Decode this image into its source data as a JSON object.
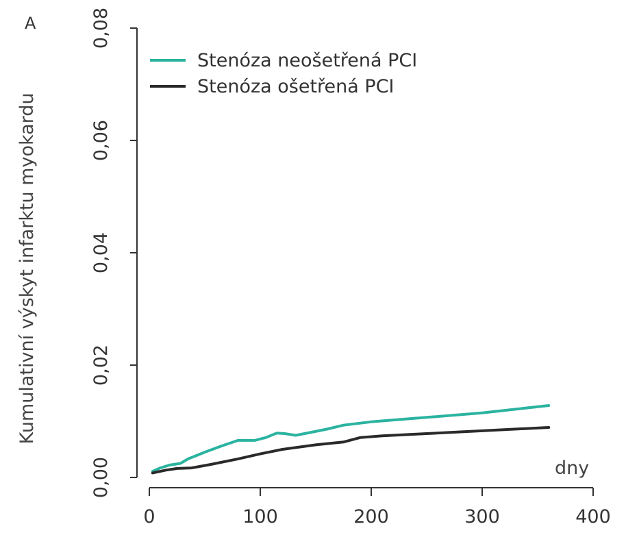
{
  "chart_data": {
    "type": "line",
    "panel_label": "A",
    "title": "",
    "xlabel": "dny",
    "ylabel": "Kumulativní výskyt infarktu myokardu",
    "xlim": [
      0,
      400
    ],
    "ylim": [
      0,
      0.08
    ],
    "x_ticks": [
      0,
      100,
      200,
      300,
      400
    ],
    "x_tick_labels": [
      "0",
      "100",
      "200",
      "300",
      "400"
    ],
    "y_ticks": [
      0,
      0.02,
      0.04,
      0.06,
      0.08
    ],
    "y_tick_labels": [
      "0,00",
      "0,02",
      "0,04",
      "0,06",
      "0,08"
    ],
    "grid": false,
    "legend_position": "top-left",
    "series": [
      {
        "name": "Stenóza neošetřená PCI",
        "color": "#2bb3a0",
        "points": [
          [
            3,
            0.0011
          ],
          [
            10,
            0.0017
          ],
          [
            18,
            0.0022
          ],
          [
            28,
            0.0025
          ],
          [
            35,
            0.0033
          ],
          [
            50,
            0.0045
          ],
          [
            65,
            0.0056
          ],
          [
            80,
            0.0066
          ],
          [
            95,
            0.0066
          ],
          [
            105,
            0.0071
          ],
          [
            115,
            0.0079
          ],
          [
            122,
            0.0078
          ],
          [
            132,
            0.0075
          ],
          [
            145,
            0.008
          ],
          [
            160,
            0.0086
          ],
          [
            175,
            0.0093
          ],
          [
            200,
            0.0099
          ],
          [
            250,
            0.0107
          ],
          [
            300,
            0.0115
          ],
          [
            360,
            0.0128
          ]
        ]
      },
      {
        "name": "Stenóza ošetřená PCI",
        "color": "#2a2a2a",
        "points": [
          [
            3,
            0.0008
          ],
          [
            15,
            0.0013
          ],
          [
            25,
            0.0016
          ],
          [
            38,
            0.0017
          ],
          [
            55,
            0.0023
          ],
          [
            80,
            0.0033
          ],
          [
            100,
            0.0042
          ],
          [
            120,
            0.005
          ],
          [
            150,
            0.0058
          ],
          [
            175,
            0.0063
          ],
          [
            190,
            0.0071
          ],
          [
            210,
            0.0074
          ],
          [
            250,
            0.0078
          ],
          [
            300,
            0.0083
          ],
          [
            360,
            0.0089
          ]
        ]
      }
    ]
  }
}
